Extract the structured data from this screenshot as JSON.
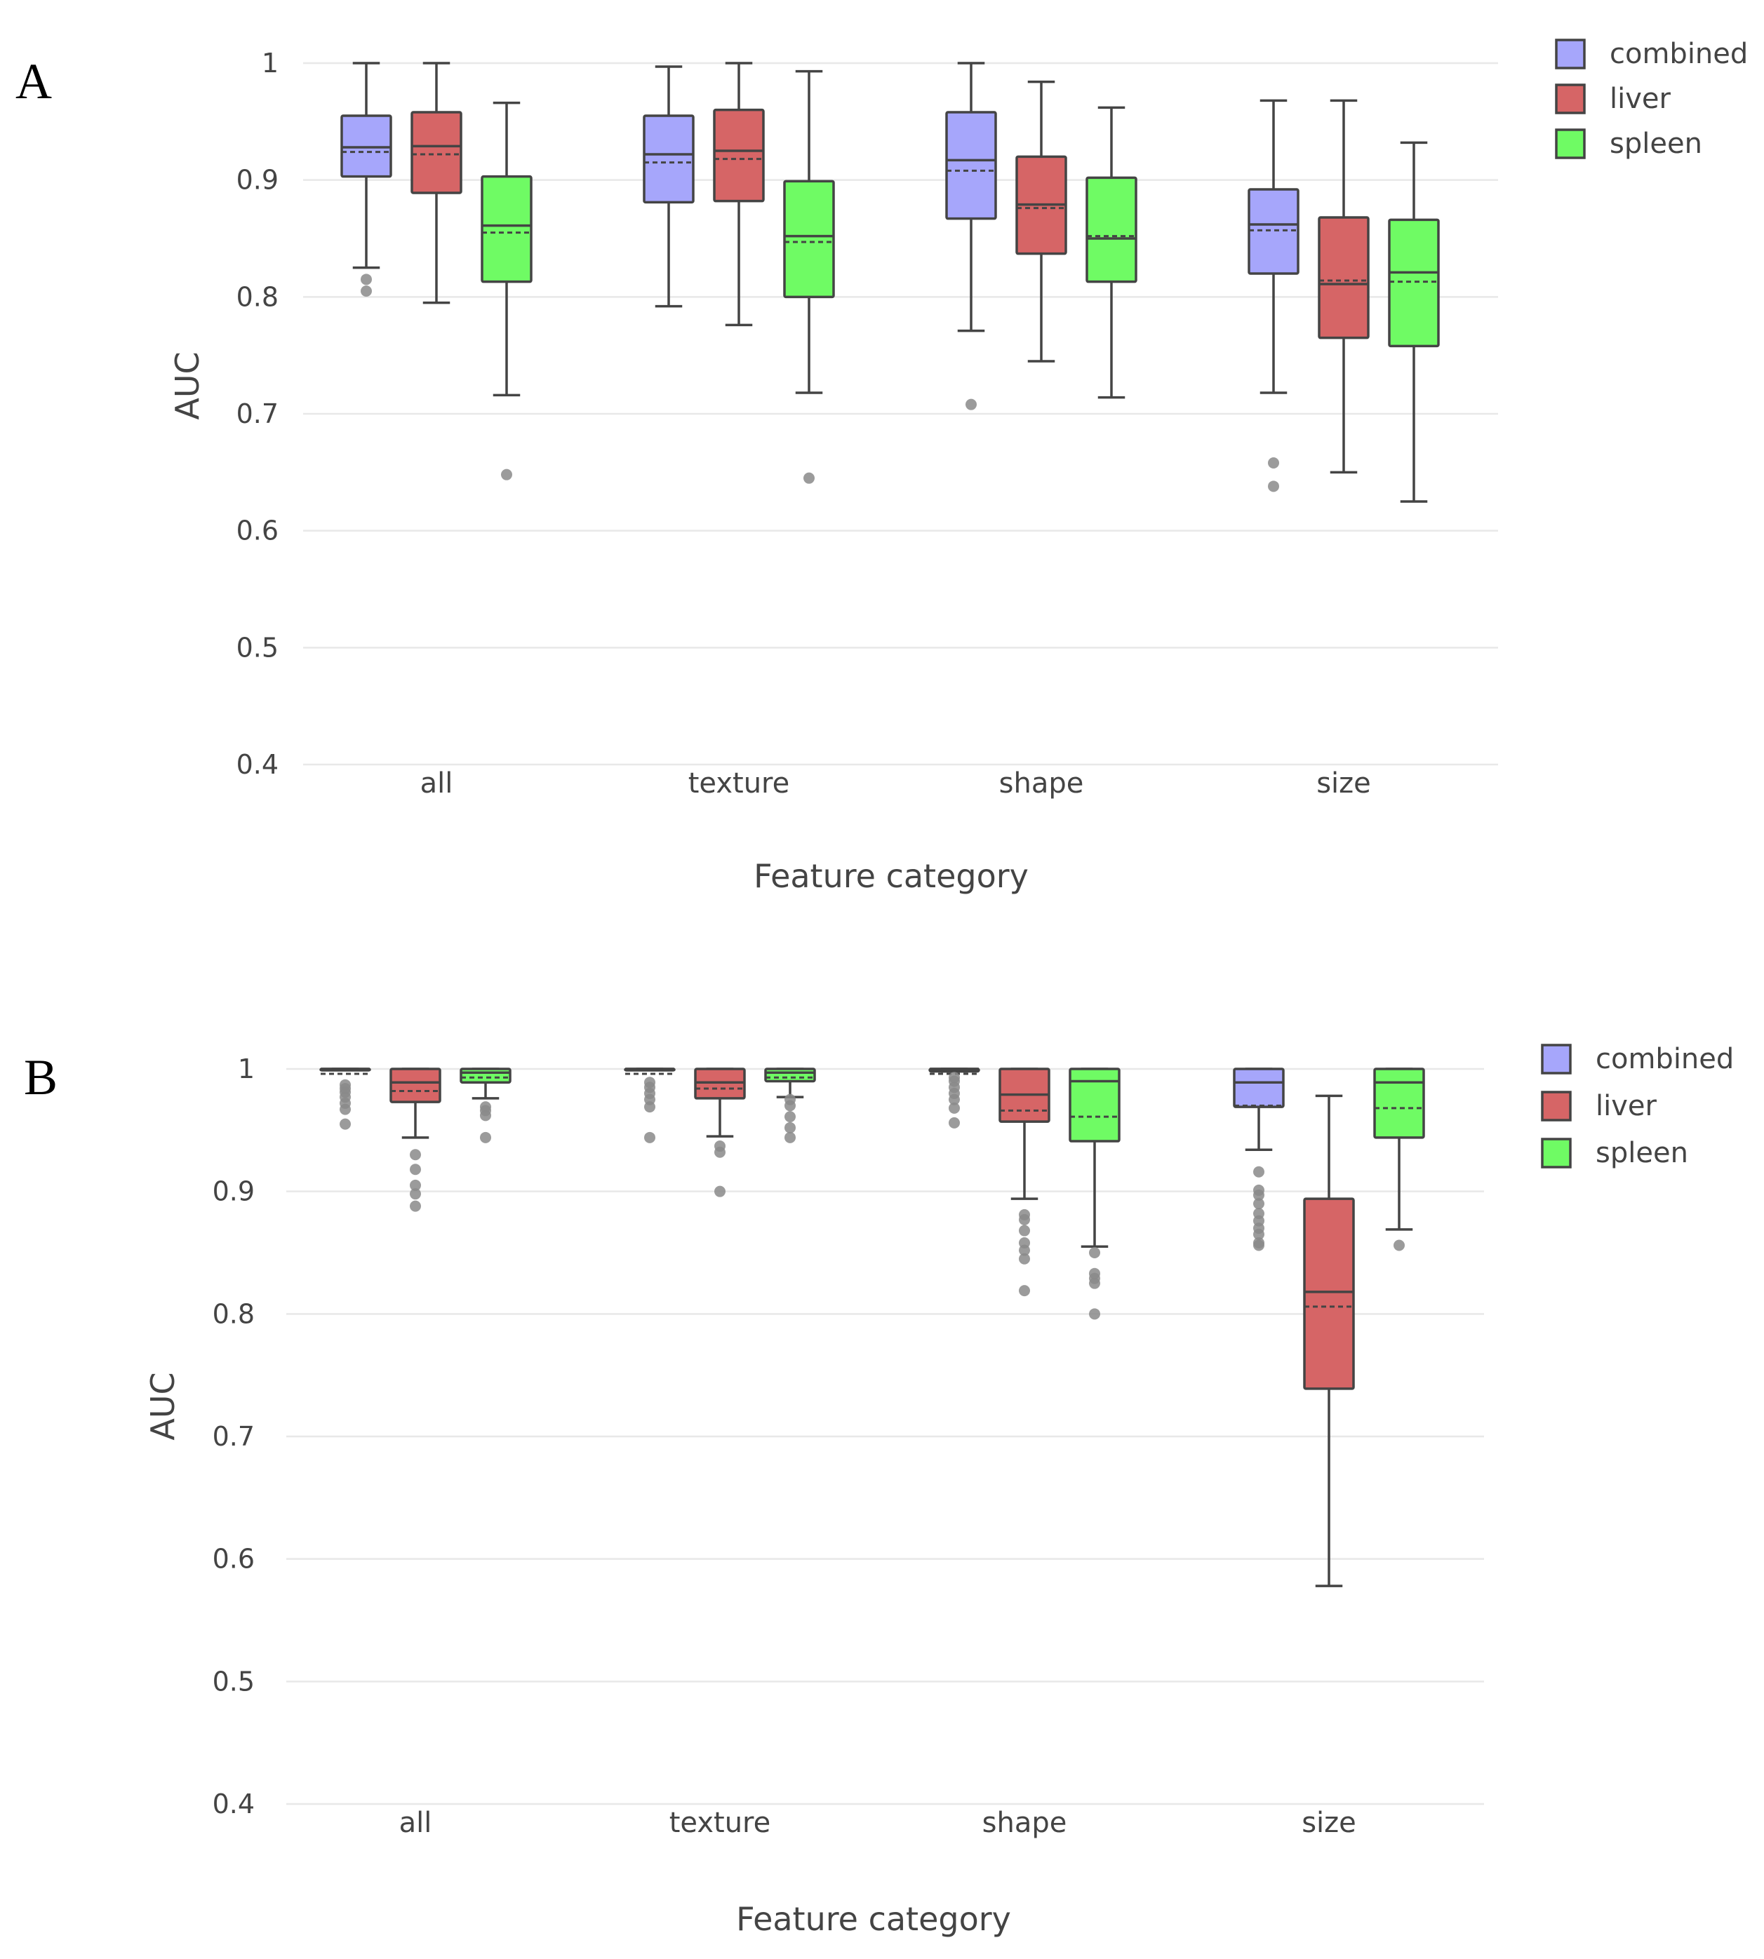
{
  "chart_data": [
    {
      "panel": "A",
      "type": "box",
      "xlabel": "Feature category",
      "ylabel": "AUC",
      "ylim": [
        0.4,
        1.0
      ],
      "yticks": [
        0.4,
        0.5,
        0.6,
        0.7,
        0.8,
        0.9,
        1
      ],
      "ytick_labels": [
        "0.4",
        "0.5",
        "0.6",
        "0.7",
        "0.8",
        "0.9",
        "1"
      ],
      "categories": [
        "all",
        "texture",
        "shape",
        "size"
      ],
      "legend": [
        "combined",
        "liver",
        "spleen"
      ],
      "colors": {
        "combined": "#a6a6fb",
        "liver": "#d66566",
        "spleen": "#6ffb64",
        "line": "#444444",
        "outlier": "#8a8a8a"
      },
      "series": [
        {
          "name": "combined",
          "boxes": [
            {
              "whisker_low": 0.825,
              "q1": 0.903,
              "median": 0.928,
              "mean": 0.924,
              "q3": 0.955,
              "whisker_high": 1.0,
              "outliers": [
                0.805,
                0.815
              ]
            },
            {
              "whisker_low": 0.792,
              "q1": 0.881,
              "median": 0.922,
              "mean": 0.915,
              "q3": 0.955,
              "whisker_high": 0.997,
              "outliers": []
            },
            {
              "whisker_low": 0.771,
              "q1": 0.867,
              "median": 0.917,
              "mean": 0.908,
              "q3": 0.958,
              "whisker_high": 1.0,
              "outliers": [
                0.708
              ]
            },
            {
              "whisker_low": 0.718,
              "q1": 0.82,
              "median": 0.862,
              "mean": 0.857,
              "q3": 0.892,
              "whisker_high": 0.968,
              "outliers": [
                0.638,
                0.658
              ]
            }
          ]
        },
        {
          "name": "liver",
          "boxes": [
            {
              "whisker_low": 0.795,
              "q1": 0.889,
              "median": 0.929,
              "mean": 0.922,
              "q3": 0.958,
              "whisker_high": 1.0,
              "outliers": []
            },
            {
              "whisker_low": 0.776,
              "q1": 0.882,
              "median": 0.925,
              "mean": 0.918,
              "q3": 0.96,
              "whisker_high": 1.0,
              "outliers": []
            },
            {
              "whisker_low": 0.745,
              "q1": 0.837,
              "median": 0.879,
              "mean": 0.876,
              "q3": 0.92,
              "whisker_high": 0.984,
              "outliers": []
            },
            {
              "whisker_low": 0.65,
              "q1": 0.765,
              "median": 0.811,
              "mean": 0.814,
              "q3": 0.868,
              "whisker_high": 0.968,
              "outliers": []
            }
          ]
        },
        {
          "name": "spleen",
          "boxes": [
            {
              "whisker_low": 0.716,
              "q1": 0.813,
              "median": 0.861,
              "mean": 0.855,
              "q3": 0.903,
              "whisker_high": 0.966,
              "outliers": [
                0.648
              ]
            },
            {
              "whisker_low": 0.718,
              "q1": 0.8,
              "median": 0.852,
              "mean": 0.847,
              "q3": 0.899,
              "whisker_high": 0.993,
              "outliers": [
                0.645
              ]
            },
            {
              "whisker_low": 0.714,
              "q1": 0.813,
              "median": 0.85,
              "mean": 0.852,
              "q3": 0.902,
              "whisker_high": 0.962,
              "outliers": []
            },
            {
              "whisker_low": 0.625,
              "q1": 0.758,
              "median": 0.821,
              "mean": 0.813,
              "q3": 0.866,
              "whisker_high": 0.932,
              "outliers": []
            }
          ]
        }
      ]
    },
    {
      "panel": "B",
      "type": "box",
      "xlabel": "Feature category",
      "ylabel": "AUC",
      "ylim": [
        0.4,
        1.0
      ],
      "yticks": [
        0.4,
        0.5,
        0.6,
        0.7,
        0.8,
        0.9,
        1
      ],
      "ytick_labels": [
        "0.4",
        "0.5",
        "0.6",
        "0.7",
        "0.8",
        "0.9",
        "1"
      ],
      "categories": [
        "all",
        "texture",
        "shape",
        "size"
      ],
      "legend": [
        "combined",
        "liver",
        "spleen"
      ],
      "colors": {
        "combined": "#a6a6fb",
        "liver": "#d66566",
        "spleen": "#6ffb64",
        "line": "#444444",
        "outlier": "#8a8a8a"
      },
      "series": [
        {
          "name": "combined",
          "boxes": [
            {
              "whisker_low": 0.999,
              "q1": 0.999,
              "median": 1.0,
              "mean": 0.996,
              "q3": 1.0,
              "whisker_high": 1.0,
              "outliers": [
                0.955,
                0.967,
                0.972,
                0.977,
                0.981,
                0.984,
                0.987
              ]
            },
            {
              "whisker_low": 0.999,
              "q1": 0.999,
              "median": 1.0,
              "mean": 0.996,
              "q3": 1.0,
              "whisker_high": 1.0,
              "outliers": [
                0.944,
                0.969,
                0.975,
                0.98,
                0.985,
                0.989
              ]
            },
            {
              "whisker_low": 0.998,
              "q1": 0.998,
              "median": 1.0,
              "mean": 0.996,
              "q3": 1.0,
              "whisker_high": 1.0,
              "outliers": [
                0.956,
                0.968,
                0.975,
                0.98,
                0.985,
                0.99,
                0.993
              ]
            },
            {
              "whisker_low": 0.934,
              "q1": 0.969,
              "median": 0.989,
              "mean": 0.97,
              "q3": 1.0,
              "whisker_high": 1.0,
              "outliers": [
                0.856,
                0.858,
                0.865,
                0.87,
                0.876,
                0.882,
                0.89,
                0.897,
                0.901,
                0.916
              ]
            }
          ]
        },
        {
          "name": "liver",
          "boxes": [
            {
              "whisker_low": 0.944,
              "q1": 0.973,
              "median": 0.989,
              "mean": 0.982,
              "q3": 1.0,
              "whisker_high": 1.0,
              "outliers": [
                0.888,
                0.898,
                0.905,
                0.918,
                0.93
              ]
            },
            {
              "whisker_low": 0.945,
              "q1": 0.976,
              "median": 0.989,
              "mean": 0.984,
              "q3": 1.0,
              "whisker_high": 1.0,
              "outliers": [
                0.9,
                0.932,
                0.937
              ]
            },
            {
              "whisker_low": 0.894,
              "q1": 0.957,
              "median": 0.979,
              "mean": 0.966,
              "q3": 1.0,
              "whisker_high": 1.0,
              "outliers": [
                0.819,
                0.845,
                0.852,
                0.858,
                0.868,
                0.877,
                0.881
              ]
            },
            {
              "whisker_low": 0.578,
              "q1": 0.739,
              "median": 0.818,
              "mean": 0.806,
              "q3": 0.894,
              "whisker_high": 0.978,
              "outliers": []
            }
          ]
        },
        {
          "name": "spleen",
          "boxes": [
            {
              "whisker_low": 0.976,
              "q1": 0.989,
              "median": 0.997,
              "mean": 0.993,
              "q3": 1.0,
              "whisker_high": 1.0,
              "outliers": [
                0.944,
                0.962,
                0.966,
                0.969
              ]
            },
            {
              "whisker_low": 0.977,
              "q1": 0.99,
              "median": 0.997,
              "mean": 0.993,
              "q3": 1.0,
              "whisker_high": 1.0,
              "outliers": [
                0.944,
                0.952,
                0.961,
                0.97,
                0.975
              ]
            },
            {
              "whisker_low": 0.855,
              "q1": 0.941,
              "median": 0.99,
              "mean": 0.961,
              "q3": 1.0,
              "whisker_high": 1.0,
              "outliers": [
                0.8,
                0.825,
                0.829,
                0.833,
                0.85
              ]
            },
            {
              "whisker_low": 0.869,
              "q1": 0.944,
              "median": 0.989,
              "mean": 0.968,
              "q3": 1.0,
              "whisker_high": 1.0,
              "outliers": [
                0.856
              ]
            }
          ]
        }
      ]
    }
  ]
}
